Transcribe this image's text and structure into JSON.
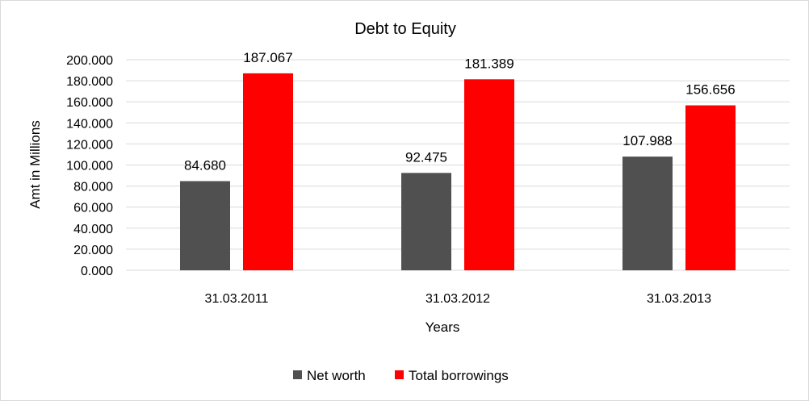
{
  "chart_data": {
    "type": "bar",
    "title": "Debt to Equity",
    "xlabel": "Years",
    "ylabel": "Amt in Millions",
    "categories": [
      "31.03.2011",
      "31.03.2012",
      "31.03.2013"
    ],
    "series": [
      {
        "name": "Net worth",
        "color": "#505050",
        "values": [
          84.68,
          92.475,
          107.988
        ],
        "labels": [
          "84.680",
          "92.475",
          "107.988"
        ]
      },
      {
        "name": "Total borrowings",
        "color": "#ff0000",
        "values": [
          187.067,
          181.389,
          156.656
        ],
        "labels": [
          "187.067",
          "181.389",
          "156.656"
        ]
      }
    ],
    "ylim": [
      0,
      200
    ],
    "yticks": [
      0,
      20,
      40,
      60,
      80,
      100,
      120,
      140,
      160,
      180,
      200
    ],
    "ytick_labels": [
      "0.000",
      "20.000",
      "40.000",
      "60.000",
      "80.000",
      "100.000",
      "120.000",
      "140.000",
      "160.000",
      "180.000",
      "200.000"
    ],
    "grid": true,
    "legend": "bottom"
  }
}
